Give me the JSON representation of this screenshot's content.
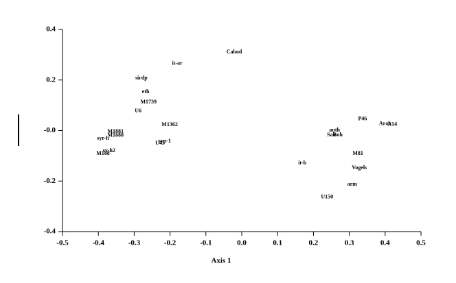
{
  "chart_data": {
    "type": "scatter",
    "x_label": "Axis 1",
    "labels": [
      "Cabod",
      "it-ar",
      "sirdp",
      "eth",
      "M1739",
      "U6",
      "M1362",
      "syp-1",
      "U43",
      "M1881",
      "M1680",
      "syr-h",
      "sy-h2",
      "M188",
      "P46",
      "Arab",
      "A14",
      "auth",
      "Sah",
      "Boh",
      "M81",
      "it-b",
      "Vogels",
      "arm",
      "U150"
    ],
    "x": [
      -0.021,
      -0.18,
      -0.28,
      -0.268,
      -0.26,
      -0.289,
      -0.201,
      -0.215,
      -0.228,
      -0.352,
      -0.352,
      -0.387,
      -0.37,
      -0.387,
      0.337,
      0.4,
      0.42,
      0.259,
      0.25,
      0.268,
      0.324,
      0.169,
      0.328,
      0.308,
      0.238
    ],
    "values": [
      0.31,
      0.265,
      0.207,
      0.153,
      0.112,
      0.077,
      0.023,
      -0.042,
      -0.05,
      -0.004,
      -0.02,
      -0.031,
      -0.08,
      -0.091,
      0.045,
      0.026,
      0.024,
      0.001,
      -0.018,
      -0.018,
      -0.091,
      -0.129,
      -0.148,
      -0.213,
      -0.264
    ],
    "xlim": [
      -0.5,
      0.5
    ],
    "xticks": [
      -0.5,
      -0.4,
      -0.3,
      -0.2,
      -0.1,
      {
        "value": 0,
        "label": "0.0"
      },
      0.1,
      0.2,
      0.3,
      0.4,
      0.5
    ],
    "ylim": [
      -0.4,
      0.4
    ],
    "yticks": [
      -0.4,
      -0.2,
      {
        "value": 0,
        "label": "-0.0"
      },
      0.2,
      0.4
    ]
  }
}
